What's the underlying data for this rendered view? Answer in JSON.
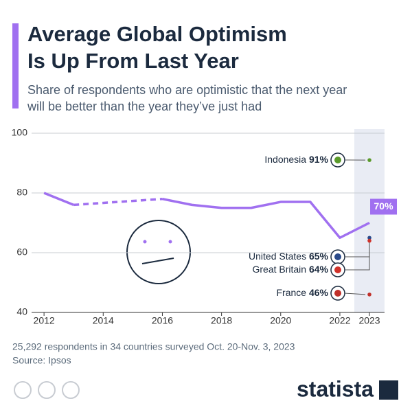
{
  "chart_data": {
    "type": "line",
    "title": [
      "Average Global Optimism",
      "Is Up From Last Year"
    ],
    "subtitle": [
      "Share of respondents who are optimistic that the next year",
      "will be better than the year they’ve just had"
    ],
    "x": [
      2012,
      2013,
      2014,
      2015,
      2016,
      2017,
      2018,
      2019,
      2020,
      2021,
      2022,
      2023
    ],
    "values": [
      80,
      76,
      null,
      null,
      78,
      76,
      75,
      75,
      77,
      77,
      65,
      70
    ],
    "value_labels": [
      null,
      null,
      null,
      null,
      null,
      null,
      null,
      null,
      null,
      null,
      null,
      "70%"
    ],
    "color": "#a070f0",
    "xlim": [
      2011.44,
      2023.51
    ],
    "xticks": [
      2012,
      2014,
      2016,
      2018,
      2020,
      2022,
      2023
    ],
    "ylim": [
      40,
      100
    ],
    "yticks": [
      40,
      60,
      80,
      100
    ],
    "grid": true,
    "points": {
      "x": 2023,
      "labels": [
        "Indonesia",
        "United States",
        "Great Britain",
        "France"
      ],
      "values": [
        91,
        65,
        64,
        46
      ],
      "value_labels": [
        "91%",
        "65%",
        "64%",
        "46%"
      ],
      "colors": [
        "#5a9a2a",
        "#2a4a8a",
        "#d0322a",
        "#c0302a"
      ]
    },
    "note": "25,292 respondents in 34 countries surveyed Oct. 20-Nov. 3, 2023",
    "source": "Source: Ipsos",
    "brand": "statista"
  }
}
